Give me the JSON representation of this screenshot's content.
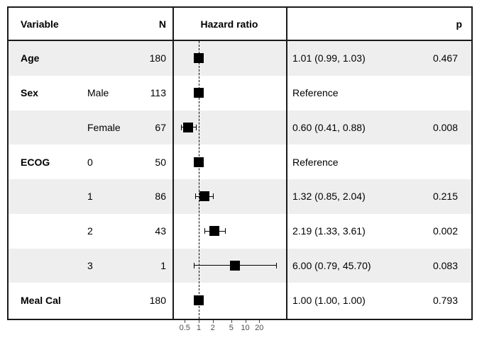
{
  "figure": {
    "header": {
      "variable": "Variable",
      "n": "N",
      "hazard_ratio": "Hazard ratio",
      "p": "p"
    },
    "colors": {
      "row_shade": "#eeeeee",
      "border": "#1a1a1a",
      "marker": "#000000",
      "axis_text": "#4d4d4d",
      "background": "#ffffff"
    }
  },
  "chart_data": {
    "type": "scatter",
    "subtype": "forest-plot",
    "title": "Hazard ratio",
    "x_scale": "log10",
    "x_ticks": [
      0.5,
      1,
      2,
      5,
      10,
      20
    ],
    "x_range": [
      0.35,
      60
    ],
    "reference_line": 1.0,
    "grid": false,
    "legend": "none",
    "rows": [
      {
        "variable": "Age",
        "level": "",
        "n": "180",
        "hr": 1.01,
        "lo": 0.99,
        "hi": 1.03,
        "estimate_label": "1.01 (0.99, 1.03)",
        "p": "0.467",
        "reference": false,
        "shaded": true
      },
      {
        "variable": "Sex",
        "level": "Male",
        "n": "113",
        "hr": 1.0,
        "lo": null,
        "hi": null,
        "estimate_label": "Reference",
        "p": "",
        "reference": true,
        "shaded": false
      },
      {
        "variable": "",
        "level": "Female",
        "n": "67",
        "hr": 0.6,
        "lo": 0.41,
        "hi": 0.88,
        "estimate_label": "0.60 (0.41, 0.88)",
        "p": "0.008",
        "reference": false,
        "shaded": true
      },
      {
        "variable": "ECOG",
        "level": "0",
        "n": "50",
        "hr": 1.0,
        "lo": null,
        "hi": null,
        "estimate_label": "Reference",
        "p": "",
        "reference": true,
        "shaded": false
      },
      {
        "variable": "",
        "level": "1",
        "n": "86",
        "hr": 1.32,
        "lo": 0.85,
        "hi": 2.04,
        "estimate_label": "1.32 (0.85, 2.04)",
        "p": "0.215",
        "reference": false,
        "shaded": true
      },
      {
        "variable": "",
        "level": "2",
        "n": "43",
        "hr": 2.19,
        "lo": 1.33,
        "hi": 3.61,
        "estimate_label": "2.19 (1.33, 3.61)",
        "p": "0.002",
        "reference": false,
        "shaded": false
      },
      {
        "variable": "",
        "level": "3",
        "n": "1",
        "hr": 6.0,
        "lo": 0.79,
        "hi": 45.7,
        "estimate_label": "6.00 (0.79, 45.70)",
        "p": "0.083",
        "reference": false,
        "shaded": true
      },
      {
        "variable": "Meal Cal",
        "level": "",
        "n": "180",
        "hr": 1.0,
        "lo": 1.0,
        "hi": 1.0,
        "estimate_label": "1.00 (1.00, 1.00)",
        "p": "0.793",
        "reference": false,
        "shaded": false
      }
    ]
  }
}
